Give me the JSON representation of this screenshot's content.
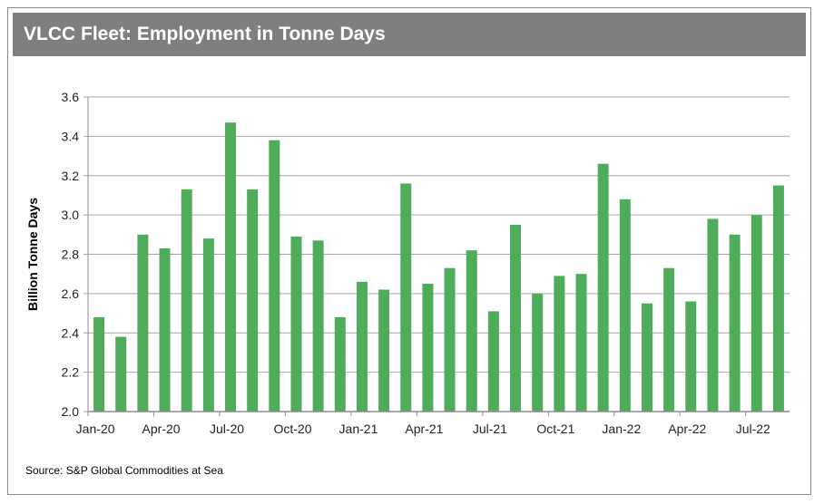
{
  "title": "VLCC Fleet: Employment in Tonne Days",
  "source": "Source: S&P Global Commodities at Sea",
  "colors": {
    "bar": "#4eac5b",
    "title_bg": "#7f7f7f",
    "grid": "#a6a6a6"
  },
  "chart_data": {
    "type": "bar",
    "title": "VLCC Fleet: Employment in Tonne Days",
    "xlabel": "",
    "ylabel": "Billion Tonne Days",
    "ylim": [
      2.0,
      3.6
    ],
    "yticks": [
      "2.0",
      "2.2",
      "2.4",
      "2.6",
      "2.8",
      "3.0",
      "3.2",
      "3.4",
      "3.6"
    ],
    "grid": true,
    "categories": [
      "Jan-20",
      "Feb-20",
      "Mar-20",
      "Apr-20",
      "May-20",
      "Jun-20",
      "Jul-20",
      "Aug-20",
      "Sep-20",
      "Oct-20",
      "Nov-20",
      "Dec-20",
      "Jan-21",
      "Feb-21",
      "Mar-21",
      "Apr-21",
      "May-21",
      "Jun-21",
      "Jul-21",
      "Aug-21",
      "Sep-21",
      "Oct-21",
      "Nov-21",
      "Dec-21",
      "Jan-22",
      "Feb-22",
      "Mar-22",
      "Apr-22",
      "May-22",
      "Jun-22",
      "Jul-22",
      "Aug-22"
    ],
    "xtick_labels": [
      "Jan-20",
      "Apr-20",
      "Jul-20",
      "Oct-20",
      "Jan-21",
      "Apr-21",
      "Jul-21",
      "Oct-21",
      "Jan-22",
      "Apr-22",
      "Jul-22"
    ],
    "values": [
      2.48,
      2.38,
      2.9,
      2.83,
      3.13,
      2.88,
      3.47,
      3.13,
      3.38,
      2.89,
      2.87,
      2.48,
      2.66,
      2.62,
      3.16,
      2.65,
      2.73,
      2.82,
      2.51,
      2.95,
      2.6,
      2.69,
      2.7,
      3.26,
      3.08,
      2.55,
      2.73,
      2.56,
      2.98,
      2.9,
      3.0,
      3.15
    ]
  }
}
